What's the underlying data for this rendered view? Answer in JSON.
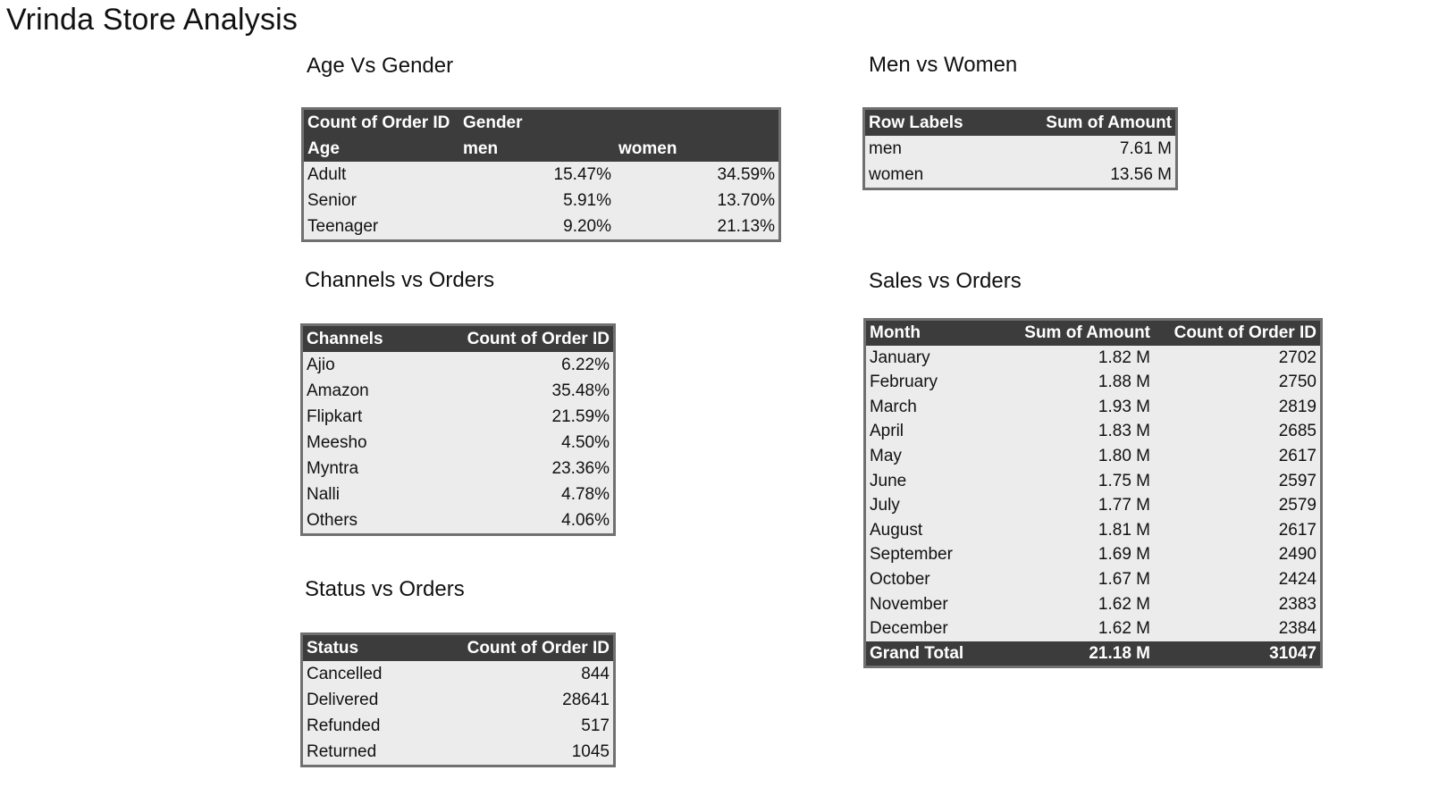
{
  "page": {
    "title": "Vrinda Store Analysis"
  },
  "age_gender": {
    "title": "Age Vs Gender",
    "h1": {
      "c1": "Count of Order ID",
      "c2": "Gender"
    },
    "h2": {
      "c1": "Age",
      "c2": "men",
      "c3": "women"
    },
    "rows": [
      {
        "age": "Adult",
        "men": "15.47%",
        "women": "34.59%"
      },
      {
        "age": "Senior",
        "men": "5.91%",
        "women": "13.70%"
      },
      {
        "age": "Teenager",
        "men": "9.20%",
        "women": "21.13%"
      }
    ]
  },
  "men_women": {
    "title": "Men vs  Women",
    "headers": [
      "Row Labels",
      "Sum of Amount"
    ],
    "rows": [
      {
        "label": "men",
        "amount": "7.61 M"
      },
      {
        "label": "women",
        "amount": "13.56 M"
      }
    ]
  },
  "channels": {
    "title": "Channels vs Orders",
    "headers": [
      "Channels",
      "Count of Order ID"
    ],
    "rows": [
      {
        "name": "Ajio",
        "value": "6.22%"
      },
      {
        "name": "Amazon",
        "value": "35.48%"
      },
      {
        "name": "Flipkart",
        "value": "21.59%"
      },
      {
        "name": "Meesho",
        "value": "4.50%"
      },
      {
        "name": "Myntra",
        "value": "23.36%"
      },
      {
        "name": "Nalli",
        "value": "4.78%"
      },
      {
        "name": "Others",
        "value": "4.06%"
      }
    ]
  },
  "status": {
    "title": "Status vs Orders",
    "headers": [
      "Status",
      "Count of Order ID"
    ],
    "rows": [
      {
        "name": "Cancelled",
        "value": "844"
      },
      {
        "name": "Delivered",
        "value": "28641"
      },
      {
        "name": "Refunded",
        "value": "517"
      },
      {
        "name": "Returned",
        "value": "1045"
      }
    ]
  },
  "sales": {
    "title": "Sales vs Orders",
    "headers": [
      "Month",
      "Sum of Amount",
      "Count of Order ID"
    ],
    "rows": [
      {
        "month": "January",
        "amount": "1.82 M",
        "count": "2702"
      },
      {
        "month": "February",
        "amount": "1.88 M",
        "count": "2750"
      },
      {
        "month": "March",
        "amount": "1.93 M",
        "count": "2819"
      },
      {
        "month": "April",
        "amount": "1.83 M",
        "count": "2685"
      },
      {
        "month": "May",
        "amount": "1.80 M",
        "count": "2617"
      },
      {
        "month": "June",
        "amount": "1.75 M",
        "count": "2597"
      },
      {
        "month": "July",
        "amount": "1.77 M",
        "count": "2579"
      },
      {
        "month": "August",
        "amount": "1.81 M",
        "count": "2617"
      },
      {
        "month": "September",
        "amount": "1.69 M",
        "count": "2490"
      },
      {
        "month": "October",
        "amount": "1.67 M",
        "count": "2424"
      },
      {
        "month": "November",
        "amount": "1.62 M",
        "count": "2383"
      },
      {
        "month": "December",
        "amount": "1.62 M",
        "count": "2384"
      }
    ],
    "total": {
      "label": "Grand Total",
      "amount": "21.18 M",
      "count": "31047"
    }
  },
  "colors": {
    "header_bg": "#3c3c3c",
    "body_bg": "#ececec",
    "border": "#707070"
  }
}
